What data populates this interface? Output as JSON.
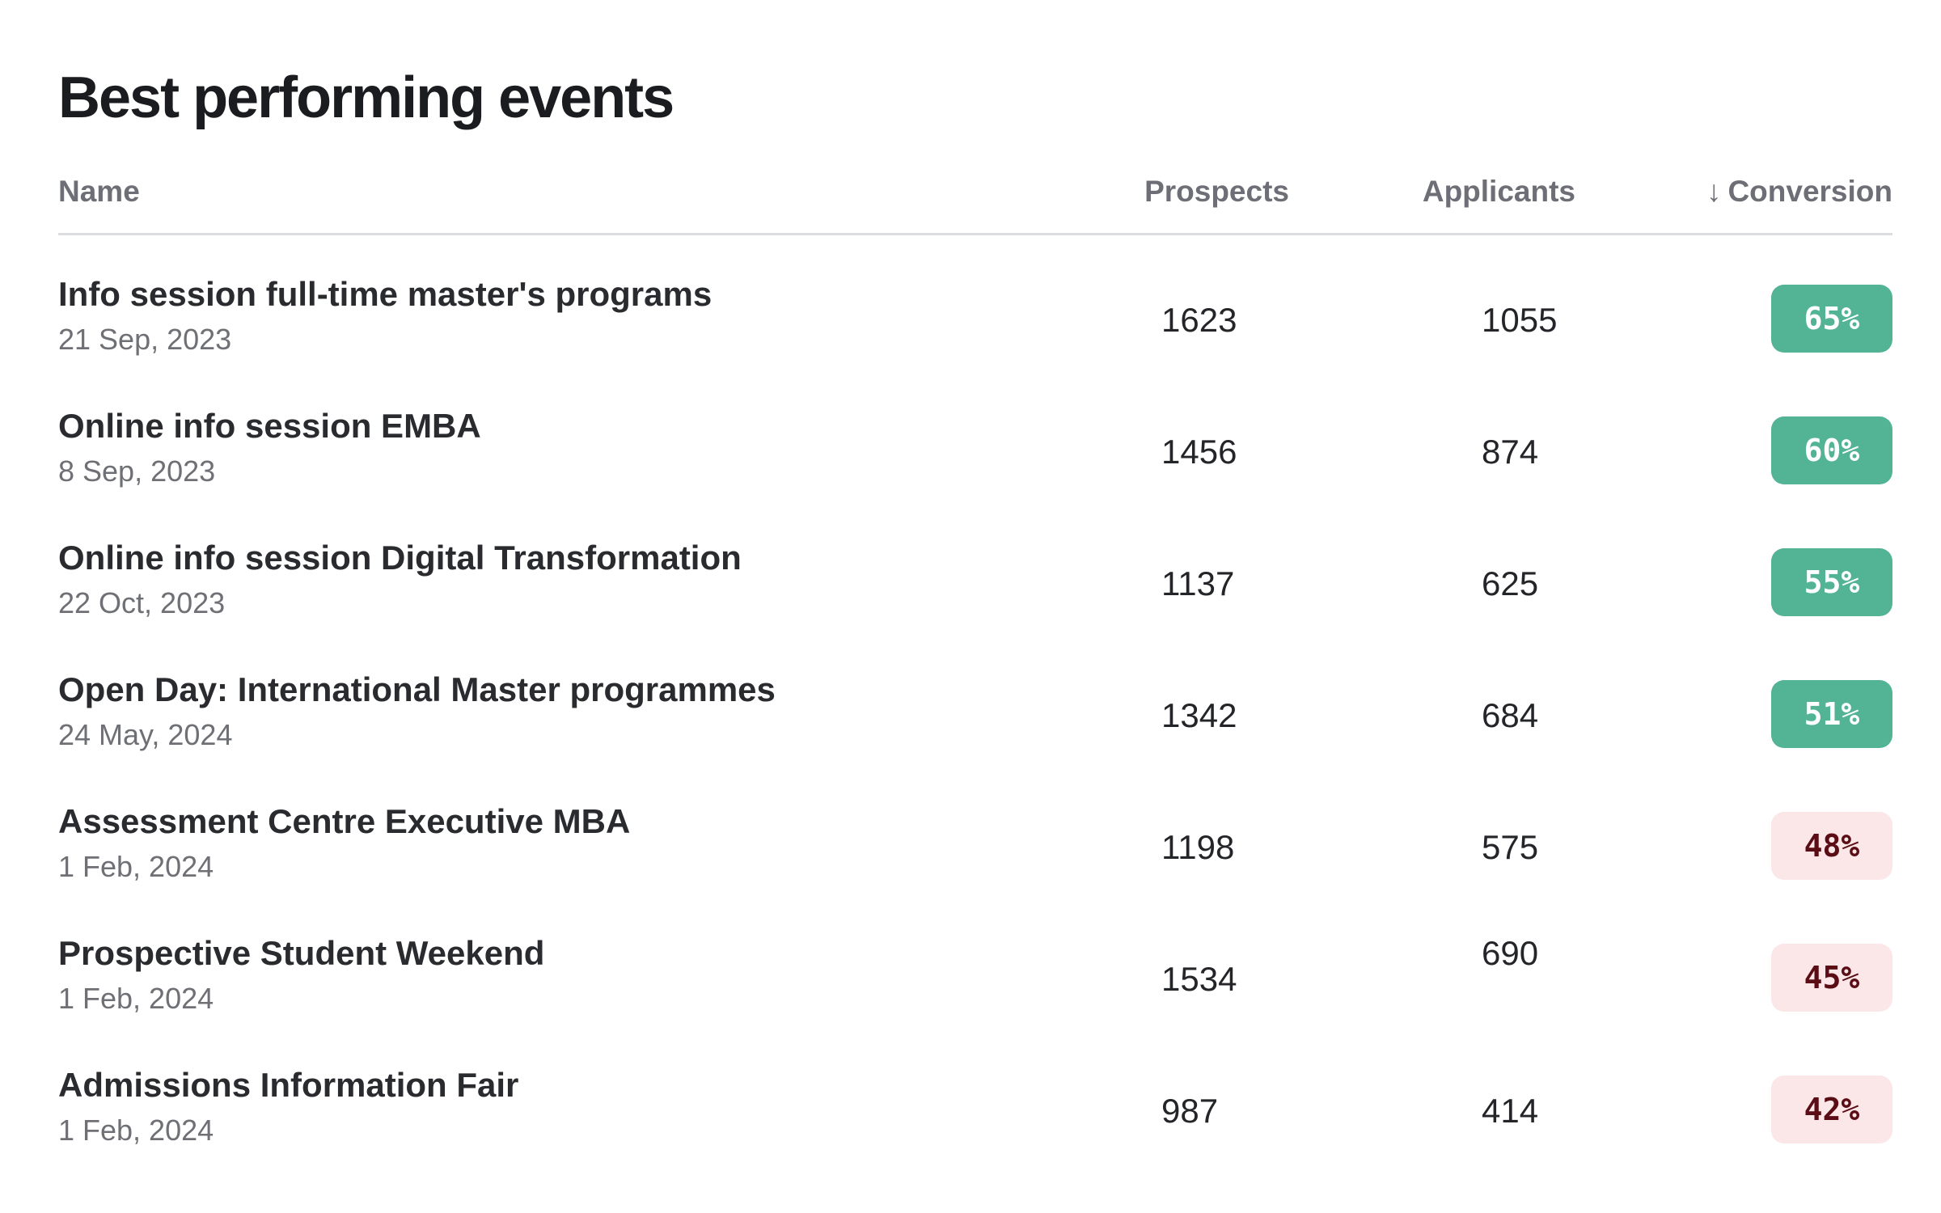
{
  "title": "Best performing events",
  "columns": {
    "name": "Name",
    "prospects": "Prospects",
    "applicants": "Applicants",
    "conversion": "Conversion",
    "sort_indicator": "↓"
  },
  "colors": {
    "positive_badge": "#52b395",
    "negative_badge": "#fbe6e8",
    "negative_text": "#5a0d14"
  },
  "rows": [
    {
      "name": "Info session full-time master's programs",
      "date": "21 Sep, 2023",
      "prospects": "1623",
      "applicants": "1055",
      "conversion": "65%",
      "status": "good"
    },
    {
      "name": "Online info session EMBA",
      "date": "8 Sep, 2023",
      "prospects": "1456",
      "applicants": "874",
      "conversion": "60%",
      "status": "good"
    },
    {
      "name": "Online info session Digital Transformation",
      "date": "22 Oct, 2023",
      "prospects": "1137",
      "applicants": "625",
      "conversion": "55%",
      "status": "good"
    },
    {
      "name": "Open Day: International Master programmes",
      "date": "24 May, 2024",
      "prospects": "1342",
      "applicants": "684",
      "conversion": "51%",
      "status": "good"
    },
    {
      "name": "Assessment Centre Executive MBA",
      "date": "1 Feb, 2024",
      "prospects": "1198",
      "applicants": "575",
      "conversion": "48%",
      "status": "bad"
    },
    {
      "name": "Prospective Student Weekend",
      "date": "1 Feb, 2024",
      "prospects": "1534",
      "applicants": "690",
      "conversion": "45%",
      "status": "bad"
    },
    {
      "name": "Admissions Information Fair",
      "date": "1 Feb, 2024",
      "prospects": "987",
      "applicants": "414",
      "conversion": "42%",
      "status": "bad"
    }
  ]
}
